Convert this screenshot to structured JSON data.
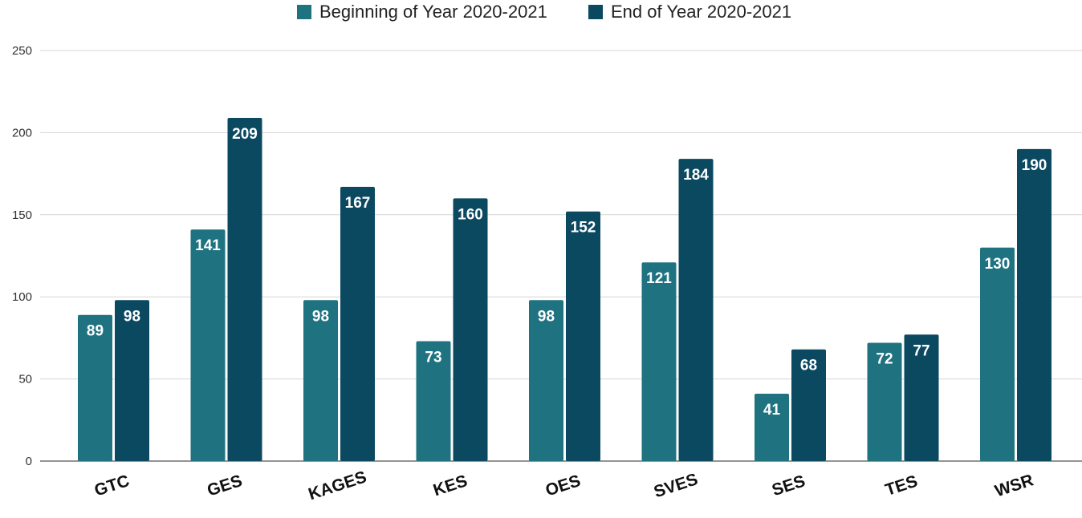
{
  "chart_data": {
    "type": "bar",
    "categories": [
      "GTC",
      "GES",
      "KAGES",
      "KES",
      "OES",
      "SVES",
      "SES",
      "TES",
      "WSR"
    ],
    "series": [
      {
        "name": "Beginning of Year 2020-2021",
        "color": "#1f7381",
        "values": [
          89,
          141,
          98,
          73,
          98,
          121,
          41,
          72,
          130
        ]
      },
      {
        "name": "End of Year 2020-2021",
        "color": "#0b4961",
        "values": [
          98,
          209,
          167,
          160,
          152,
          184,
          68,
          77,
          190
        ]
      }
    ],
    "ylim": [
      0,
      250
    ],
    "yticks": [
      0,
      50,
      100,
      150,
      200,
      250
    ],
    "title": "",
    "xlabel": "",
    "ylabel": "",
    "grid": true,
    "legend_position": "top-center",
    "data_labels": true,
    "x_tick_rotation": "slanted"
  }
}
